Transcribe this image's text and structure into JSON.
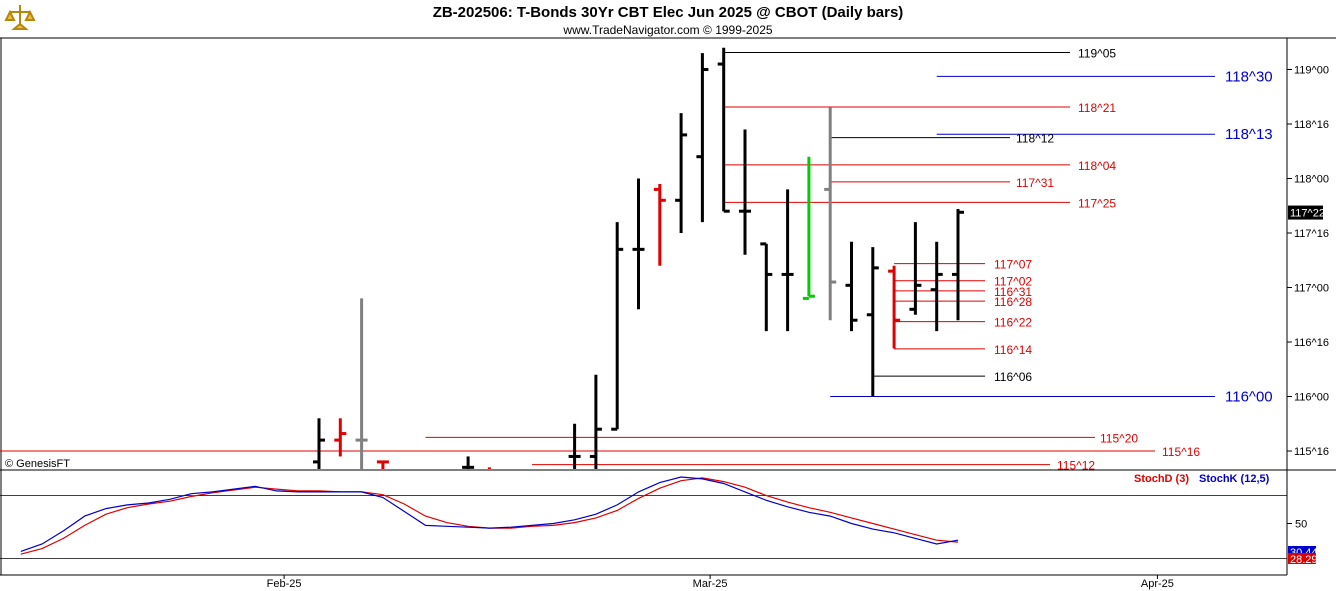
{
  "header": {
    "title": "ZB-202506:  T-Bonds 30Yr CBT Elec Jun 2025 @ CBOT  (Daily bars)",
    "subtitle": "www.TradeNavigator.com © 1999-2025"
  },
  "credit": "© GenesisFT",
  "colors": {
    "black": "#000000",
    "red": "#e00000",
    "gray": "#808080",
    "green": "#00cc00",
    "blue": "#0000cc",
    "stochD": "#e00000",
    "stochK": "#0000cc"
  },
  "chart_data": [
    {
      "type": "bar",
      "subtype": "ohlc",
      "price_axis": {
        "ticks": [
          {
            "value": 115.5,
            "label": "115^16"
          },
          {
            "value": 116.0,
            "label": "116^00"
          },
          {
            "value": 116.5,
            "label": "116^16"
          },
          {
            "value": 117.0,
            "label": "117^00"
          },
          {
            "value": 117.5,
            "label": "117^16"
          },
          {
            "value": 118.0,
            "label": "118^00"
          },
          {
            "value": 118.5,
            "label": "118^16"
          },
          {
            "value": 119.0,
            "label": "119^00"
          }
        ],
        "last_price": {
          "value": 117.6875,
          "label": "117^22"
        }
      },
      "x_axis": {
        "labels": [
          {
            "index": 12,
            "label": "Feb-25"
          },
          {
            "index": 32,
            "label": "Mar-25"
          },
          {
            "index": 53,
            "label": "Apr-25"
          }
        ]
      },
      "bars": [
        {
          "i": 15,
          "h": 115.8,
          "l": 115.3,
          "o": 115.4,
          "c": 115.6,
          "color": "black"
        },
        {
          "i": 16,
          "h": 115.8,
          "l": 115.45,
          "o": 115.6,
          "c": 115.66,
          "color": "red"
        },
        {
          "i": 17,
          "h": 116.9,
          "l": 115.3,
          "o": 115.6,
          "c": 115.6,
          "color": "gray"
        },
        {
          "i": 18,
          "h": 115.4,
          "l": 115.3,
          "o": 115.4,
          "c": 115.4,
          "color": "red"
        },
        {
          "i": 22,
          "h": 115.45,
          "l": 115.3,
          "o": 115.35,
          "c": 115.35,
          "color": "black"
        },
        {
          "i": 23,
          "h": 115.35,
          "l": 115.3,
          "o": 115.33,
          "c": 115.33,
          "color": "red"
        },
        {
          "i": 27,
          "h": 115.75,
          "l": 115.3,
          "o": 115.45,
          "c": 115.45,
          "color": "black"
        },
        {
          "i": 28,
          "h": 116.2,
          "l": 115.3,
          "o": 115.45,
          "c": 115.7,
          "color": "black"
        },
        {
          "i": 29,
          "h": 117.6,
          "l": 115.7,
          "o": 115.7,
          "c": 117.35,
          "color": "black"
        },
        {
          "i": 30,
          "h": 118.0,
          "l": 116.8,
          "o": 117.35,
          "c": 117.35,
          "color": "black"
        },
        {
          "i": 31,
          "h": 117.95,
          "l": 117.2,
          "o": 117.9,
          "c": 117.8,
          "color": "red"
        },
        {
          "i": 32,
          "h": 118.6,
          "l": 117.5,
          "o": 117.8,
          "c": 118.4,
          "color": "black"
        },
        {
          "i": 33,
          "h": 119.15,
          "l": 117.6,
          "o": 118.2,
          "c": 119.0,
          "color": "black"
        },
        {
          "i": 34,
          "h": 119.2,
          "l": 117.7,
          "o": 119.05,
          "c": 117.7,
          "color": "black"
        },
        {
          "i": 35,
          "h": 118.45,
          "l": 117.3,
          "o": 117.7,
          "c": 117.7,
          "color": "black"
        },
        {
          "i": 36,
          "h": 117.4,
          "l": 116.6,
          "o": 117.4,
          "c": 117.12,
          "color": "black"
        },
        {
          "i": 37,
          "h": 117.9,
          "l": 116.6,
          "o": 117.12,
          "c": 117.12,
          "color": "black"
        },
        {
          "i": 38,
          "h": 118.2,
          "l": 116.92,
          "o": 116.9,
          "c": 116.92,
          "color": "green"
        },
        {
          "i": 39,
          "h": 118.65,
          "l": 116.7,
          "o": 117.9,
          "c": 117.05,
          "color": "gray"
        },
        {
          "i": 40,
          "h": 117.42,
          "l": 116.6,
          "o": 117.02,
          "c": 116.7,
          "color": "black"
        },
        {
          "i": 41,
          "h": 117.37,
          "l": 116.0,
          "o": 116.75,
          "c": 117.18,
          "color": "black"
        },
        {
          "i": 42,
          "h": 117.2,
          "l": 116.44,
          "o": 117.15,
          "c": 116.7,
          "color": "red"
        },
        {
          "i": 43,
          "h": 117.6,
          "l": 116.75,
          "o": 116.8,
          "c": 117.02,
          "color": "black"
        },
        {
          "i": 44,
          "h": 117.42,
          "l": 116.6,
          "o": 116.98,
          "c": 117.12,
          "color": "black"
        },
        {
          "i": 45,
          "h": 117.72,
          "l": 116.7,
          "o": 117.12,
          "c": 117.69,
          "color": "black"
        }
      ],
      "levels": [
        {
          "value": 119.156,
          "label": "119^05",
          "color": "black",
          "from": 34,
          "big": false
        },
        {
          "value": 118.9375,
          "label": "118^30",
          "color": "blue",
          "from": 44,
          "big": true
        },
        {
          "value": 118.656,
          "label": "118^21",
          "color": "red",
          "from": 34,
          "big": false
        },
        {
          "value": 118.406,
          "label": "118^13",
          "color": "blue",
          "from": 44,
          "big": true
        },
        {
          "value": 118.375,
          "label": "118^12",
          "color": "black",
          "from": 39,
          "big": false
        },
        {
          "value": 118.125,
          "label": "118^04",
          "color": "red",
          "from": 34,
          "big": false
        },
        {
          "value": 117.969,
          "label": "117^31",
          "color": "red",
          "from": 39,
          "big": false
        },
        {
          "value": 117.781,
          "label": "117^25",
          "color": "red",
          "from": 34,
          "big": false
        },
        {
          "value": 117.219,
          "label": "117^07",
          "color": "red",
          "from": 42,
          "big": false
        },
        {
          "value": 117.0625,
          "label": "117^02",
          "color": "red",
          "from": 42,
          "big": false
        },
        {
          "value": 116.969,
          "label": "116^31",
          "color": "red",
          "from": 42,
          "big": false
        },
        {
          "value": 116.875,
          "label": "116^28",
          "color": "red",
          "from": 42,
          "big": false
        },
        {
          "value": 116.6875,
          "label": "116^22",
          "color": "red",
          "from": 42,
          "big": false
        },
        {
          "value": 116.4375,
          "label": "116^14",
          "color": "red",
          "from": 42,
          "big": false
        },
        {
          "value": 116.1875,
          "label": "116^06",
          "color": "black",
          "from": 41,
          "big": false
        },
        {
          "value": 116.0,
          "label": "116^00",
          "color": "blue",
          "from": 39,
          "big": true
        },
        {
          "value": 115.625,
          "label": "115^20",
          "color": "red",
          "from": 20,
          "big": false
        },
        {
          "value": 115.5,
          "label": "115^16",
          "color": "red",
          "from": 0,
          "big": false
        },
        {
          "value": 115.375,
          "label": "115^12",
          "color": "red",
          "from": 25,
          "big": false
        }
      ]
    },
    {
      "type": "line",
      "name": "stochastic",
      "y_ticks": [
        {
          "value": 50,
          "label": "50"
        }
      ],
      "ylim": [
        0,
        100
      ],
      "legend": [
        {
          "name": "StochD (3)",
          "color": "red"
        },
        {
          "name": "StochK (12,5)",
          "color": "blue"
        }
      ],
      "last_values": {
        "k": "30.44",
        "d": "28.29"
      },
      "series": [
        {
          "name": "StochK (12,5)",
          "color": "blue",
          "points": [
            [
              1,
              20
            ],
            [
              2,
              28
            ],
            [
              3,
              42
            ],
            [
              4,
              58
            ],
            [
              5,
              66
            ],
            [
              6,
              70
            ],
            [
              7,
              72
            ],
            [
              8,
              76
            ],
            [
              9,
              82
            ],
            [
              10,
              84
            ],
            [
              11,
              87
            ],
            [
              12,
              90
            ],
            [
              13,
              85
            ],
            [
              14,
              84
            ],
            [
              15,
              84
            ],
            [
              16,
              84
            ],
            [
              17,
              84
            ],
            [
              18,
              78
            ],
            [
              19,
              63
            ],
            [
              20,
              48
            ],
            [
              21,
              47
            ],
            [
              22,
              46
            ],
            [
              23,
              45
            ],
            [
              24,
              46
            ],
            [
              25,
              48
            ],
            [
              26,
              50
            ],
            [
              27,
              54
            ],
            [
              28,
              60
            ],
            [
              29,
              70
            ],
            [
              30,
              84
            ],
            [
              31,
              94
            ],
            [
              32,
              100
            ],
            [
              33,
              98
            ],
            [
              34,
              93
            ],
            [
              35,
              84
            ],
            [
              36,
              75
            ],
            [
              37,
              68
            ],
            [
              38,
              62
            ],
            [
              39,
              58
            ],
            [
              40,
              50
            ],
            [
              41,
              44
            ],
            [
              42,
              40
            ],
            [
              43,
              34
            ],
            [
              44,
              28
            ],
            [
              45,
              32
            ]
          ]
        },
        {
          "name": "StochD (3)",
          "color": "red",
          "points": [
            [
              1,
              17
            ],
            [
              2,
              23
            ],
            [
              3,
              34
            ],
            [
              4,
              48
            ],
            [
              5,
              60
            ],
            [
              6,
              67
            ],
            [
              7,
              71
            ],
            [
              8,
              74
            ],
            [
              9,
              79
            ],
            [
              10,
              83
            ],
            [
              11,
              86
            ],
            [
              12,
              89
            ],
            [
              13,
              87
            ],
            [
              14,
              85
            ],
            [
              15,
              85
            ],
            [
              16,
              84
            ],
            [
              17,
              84
            ],
            [
              18,
              81
            ],
            [
              19,
              71
            ],
            [
              20,
              58
            ],
            [
              21,
              51
            ],
            [
              22,
              47
            ],
            [
              23,
              45
            ],
            [
              24,
              45
            ],
            [
              25,
              47
            ],
            [
              26,
              48
            ],
            [
              27,
              51
            ],
            [
              28,
              56
            ],
            [
              29,
              64
            ],
            [
              30,
              77
            ],
            [
              31,
              88
            ],
            [
              32,
              96
            ],
            [
              33,
              99
            ],
            [
              34,
              95
            ],
            [
              35,
              89
            ],
            [
              36,
              80
            ],
            [
              37,
              73
            ],
            [
              38,
              67
            ],
            [
              39,
              62
            ],
            [
              40,
              56
            ],
            [
              41,
              50
            ],
            [
              42,
              44
            ],
            [
              43,
              38
            ],
            [
              44,
              32
            ],
            [
              45,
              30
            ]
          ]
        }
      ]
    }
  ]
}
